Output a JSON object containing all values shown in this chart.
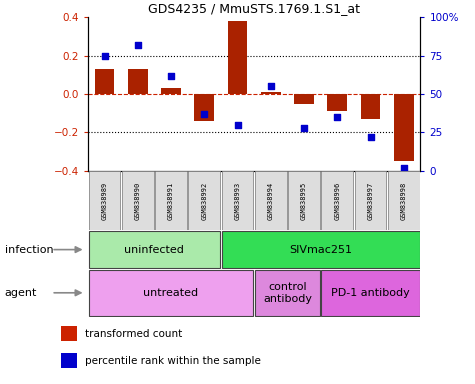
{
  "title": "GDS4235 / MmuSTS.1769.1.S1_at",
  "samples": [
    "GSM838989",
    "GSM838990",
    "GSM838991",
    "GSM838992",
    "GSM838993",
    "GSM838994",
    "GSM838995",
    "GSM838996",
    "GSM838997",
    "GSM838998"
  ],
  "transformed_count": [
    0.13,
    0.13,
    0.03,
    -0.14,
    0.38,
    0.01,
    -0.05,
    -0.09,
    -0.13,
    -0.35
  ],
  "percentile_rank": [
    75,
    82,
    62,
    37,
    30,
    55,
    28,
    35,
    22,
    2
  ],
  "ylim": [
    -0.4,
    0.4
  ],
  "y2lim": [
    0,
    100
  ],
  "yticks": [
    -0.4,
    -0.2,
    0.0,
    0.2,
    0.4
  ],
  "y2ticks": [
    0,
    25,
    50,
    75,
    100
  ],
  "y2ticklabels": [
    "0",
    "25",
    "50",
    "75",
    "100%"
  ],
  "bar_color": "#aa2200",
  "scatter_color": "#0000cc",
  "infection_groups": [
    {
      "label": "uninfected",
      "start": 0,
      "end": 3,
      "color": "#aaeaaa"
    },
    {
      "label": "SIVmac251",
      "start": 4,
      "end": 9,
      "color": "#33dd55"
    }
  ],
  "agent_groups": [
    {
      "label": "untreated",
      "start": 0,
      "end": 4,
      "color": "#eea0ee"
    },
    {
      "label": "control\nantibody",
      "start": 5,
      "end": 6,
      "color": "#dd88dd"
    },
    {
      "label": "PD-1 antibody",
      "start": 7,
      "end": 9,
      "color": "#dd66dd"
    }
  ],
  "infection_label": "infection",
  "agent_label": "agent",
  "legend_items": [
    {
      "color": "#cc2200",
      "label": "transformed count"
    },
    {
      "color": "#0000cc",
      "label": "percentile rank within the sample"
    }
  ],
  "background_color": "#ffffff"
}
